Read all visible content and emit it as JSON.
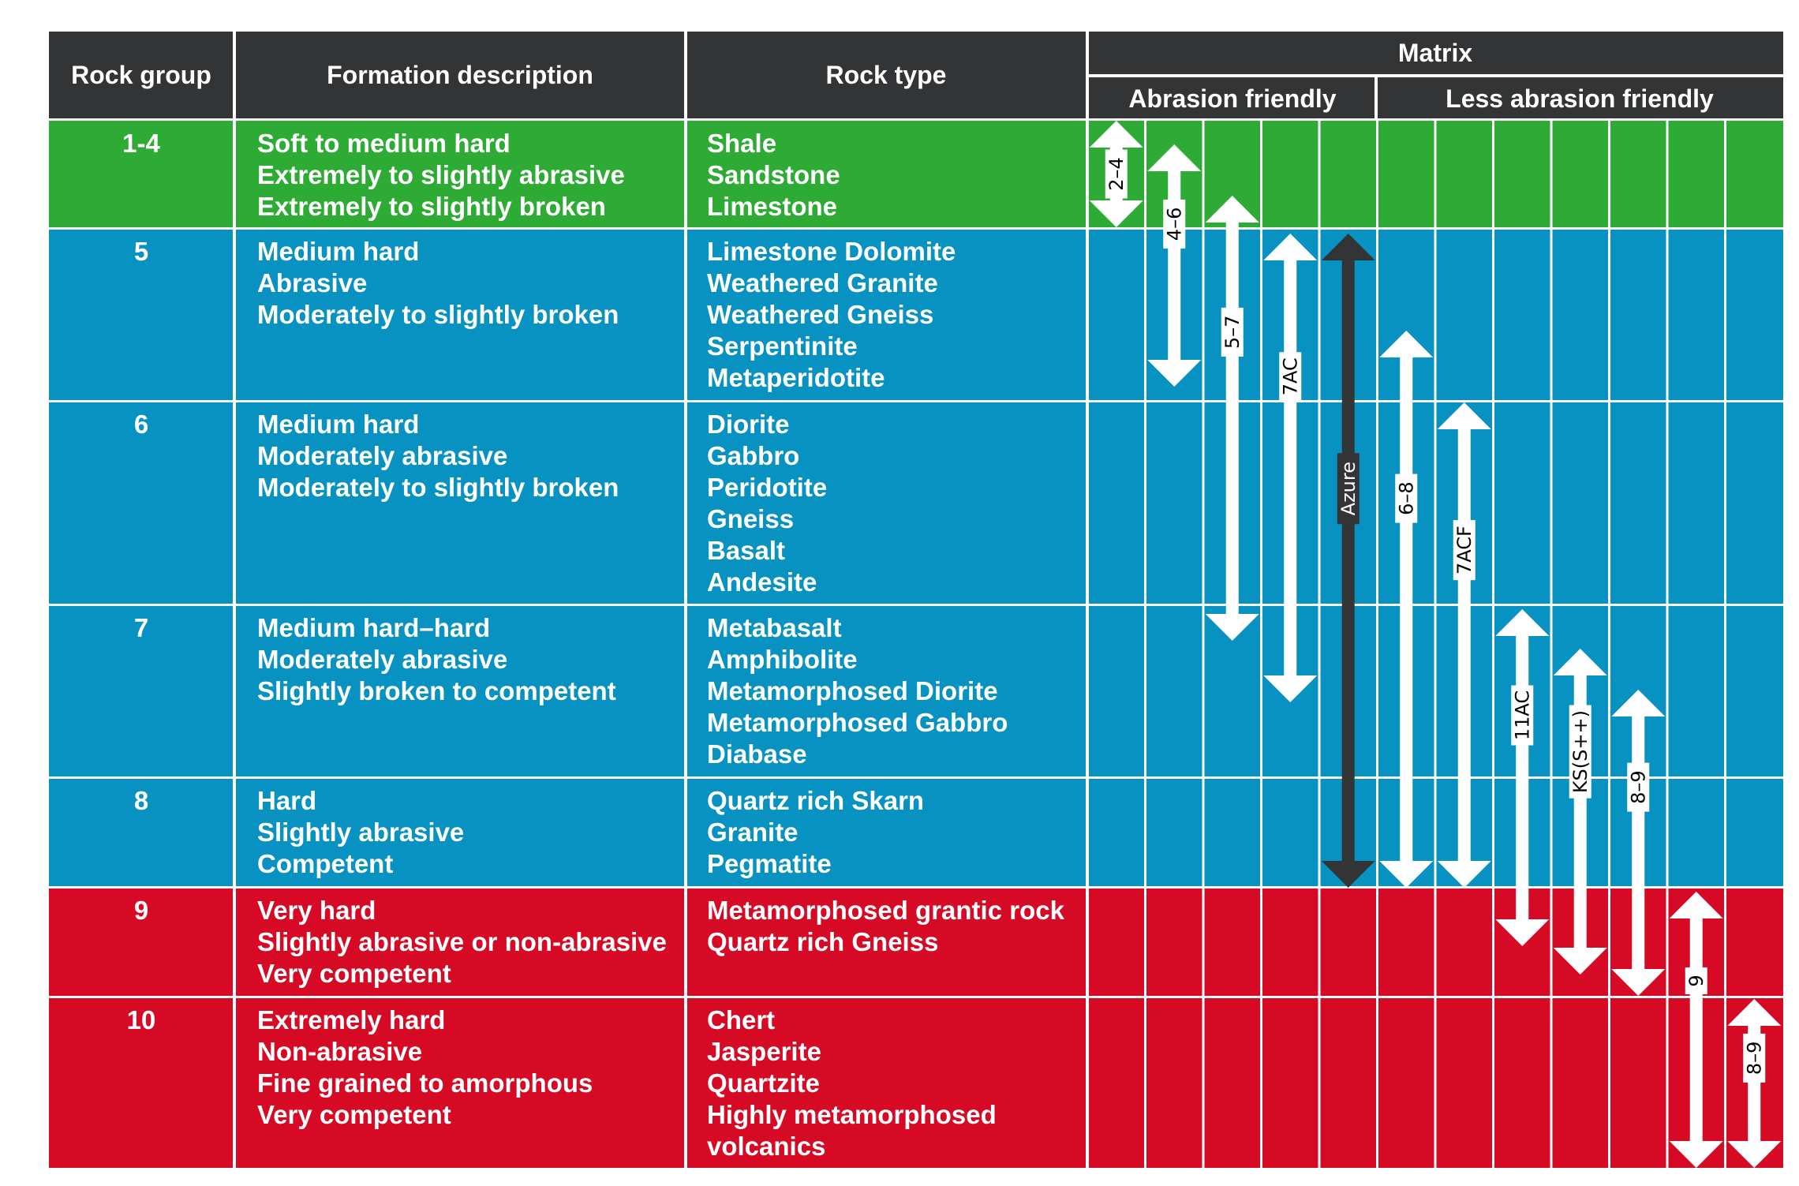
{
  "header": {
    "rock_group": "Rock group",
    "formation_description": "Formation description",
    "rock_type": "Rock type",
    "matrix": "Matrix",
    "abrasion_friendly": "Abrasion friendly",
    "less_abrasion_friendly": "Less abrasion friendly"
  },
  "colors": {
    "header_bg": "#333435",
    "green": "#2eab35",
    "blue": "#0892c2",
    "red": "#d60a25",
    "arrow": "#ffffff",
    "arrow_dark": "#333435"
  },
  "rows": [
    {
      "group": "1-4",
      "color": "green",
      "description": [
        "Soft to medium hard",
        "Extremely to slightly abrasive",
        "Extremely to slightly broken"
      ],
      "rock_types": [
        "Shale",
        "Sandstone",
        "Limestone"
      ]
    },
    {
      "group": "5",
      "color": "blue",
      "description": [
        "Medium hard",
        "Abrasive",
        "Moderately to slightly broken"
      ],
      "rock_types": [
        "Limestone Dolomite",
        "Weathered Granite",
        "Weathered Gneiss",
        "Serpentinite",
        "Metaperidotite"
      ]
    },
    {
      "group": "6",
      "color": "blue",
      "description": [
        "Medium hard",
        "Moderately abrasive",
        "Moderately to slightly broken"
      ],
      "rock_types": [
        "Diorite",
        "Gabbro",
        "Peridotite",
        "Gneiss",
        "Basalt",
        "Andesite"
      ]
    },
    {
      "group": "7",
      "color": "blue",
      "description": [
        "Medium hard–hard",
        "Moderately abrasive",
        "Slightly broken to competent"
      ],
      "rock_types": [
        "Metabasalt",
        "Amphibolite",
        "Metamorphosed Diorite",
        "Metamorphosed Gabbro",
        "Diabase"
      ]
    },
    {
      "group": "8",
      "color": "blue",
      "description": [
        "Hard",
        "Slightly abrasive",
        "Competent"
      ],
      "rock_types": [
        "Quartz rich Skarn",
        "Granite",
        "Pegmatite"
      ]
    },
    {
      "group": "9",
      "color": "red",
      "description": [
        "Very hard",
        "Slightly abrasive or non-abrasive",
        "Very competent"
      ],
      "rock_types": [
        "Metamorphosed grantic rock",
        "Quartz rich Gneiss"
      ]
    },
    {
      "group": "10",
      "color": "red",
      "description": [
        "Extremely hard",
        "Non-abrasive",
        "Fine grained to amorphous",
        "Very competent"
      ],
      "rock_types": [
        "Chert",
        "Jasperite",
        "Quartzite",
        "Highly metamorphosed",
        "volcanics"
      ]
    }
  ],
  "matrix_arrows": [
    {
      "label": "2–4",
      "start_group": "1-4",
      "end_group": "1-4",
      "dark": false
    },
    {
      "label": "4–6",
      "start_group": "1-4",
      "end_group": "5",
      "dark": false
    },
    {
      "label": "5–7",
      "start_group": "1-4",
      "end_group": "7",
      "dark": false
    },
    {
      "label": "7AC",
      "start_group": "5",
      "end_group": "7",
      "dark": false
    },
    {
      "label": "Azure",
      "start_group": "5",
      "end_group": "8",
      "dark": true
    },
    {
      "label": "6–8",
      "start_group": "5",
      "end_group": "8",
      "dark": false
    },
    {
      "label": "7ACF",
      "start_group": "6",
      "end_group": "8",
      "dark": false
    },
    {
      "label": "11AC",
      "start_group": "7",
      "end_group": "9",
      "dark": false
    },
    {
      "label": "KS(S++)",
      "start_group": "7",
      "end_group": "9",
      "dark": false
    },
    {
      "label": "8–9",
      "start_group": "7",
      "end_group": "9",
      "dark": false
    },
    {
      "label": "9",
      "start_group": "9",
      "end_group": "10",
      "dark": false
    },
    {
      "label": "8–9",
      "start_group": "10",
      "end_group": "10",
      "dark": false
    }
  ]
}
